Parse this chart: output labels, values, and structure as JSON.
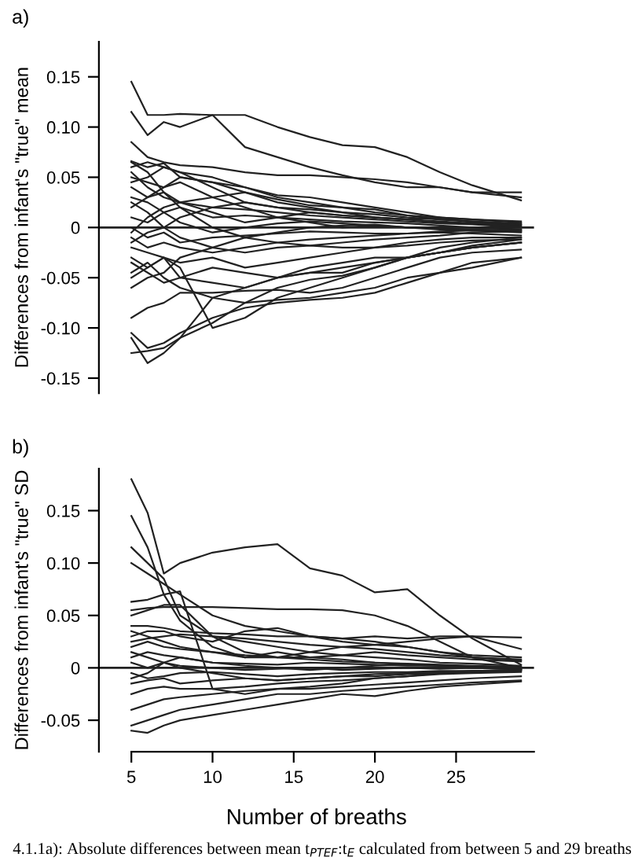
{
  "chart_data": [
    {
      "type": "line",
      "title": "a)",
      "ylabel": "Differences from infant's \"true\" mean",
      "tick_labels": "y",
      "grid": false,
      "legend": false,
      "x": [
        5,
        6,
        7,
        8,
        10,
        12,
        14,
        16,
        18,
        20,
        22,
        24,
        26,
        29
      ],
      "xlim": [
        3,
        29.8
      ],
      "ylim": [
        -0.165,
        0.185
      ],
      "yticks": [
        {
          "value": 0.15,
          "label": "0.15"
        },
        {
          "value": 0.1,
          "label": "0.10"
        },
        {
          "value": 0.05,
          "label": "0.05"
        },
        {
          "value": 0,
          "label": "0"
        },
        {
          "value": -0.05,
          "label": "-0.05"
        },
        {
          "value": -0.1,
          "label": "-0.10"
        },
        {
          "value": -0.15,
          "label": "-0.15"
        }
      ],
      "ref_lines": [
        {
          "axis": "y",
          "value": 0,
          "color": "#222222"
        }
      ],
      "series": [
        {
          "color": "#222222",
          "values": [
            0.145,
            0.112,
            0.112,
            0.113,
            0.112,
            0.112,
            0.1,
            0.09,
            0.082,
            0.08,
            0.07,
            0.055,
            0.042,
            0.027
          ]
        },
        {
          "color": "#222222",
          "values": [
            0.115,
            0.092,
            0.105,
            0.1,
            0.112,
            0.08,
            0.07,
            0.06,
            0.052,
            0.045,
            0.04,
            0.04,
            0.035,
            0.035
          ]
        },
        {
          "color": "#222222",
          "values": [
            0.085,
            0.07,
            0.065,
            0.062,
            0.06,
            0.055,
            0.052,
            0.052,
            0.05,
            0.048,
            0.045,
            0.04,
            0.035,
            0.03
          ]
        },
        {
          "color": "#222222",
          "values": [
            0.066,
            0.06,
            0.064,
            0.05,
            0.045,
            0.04,
            0.032,
            0.03,
            0.025,
            0.02,
            0.015,
            0.01,
            0.008,
            0.005
          ]
        },
        {
          "color": "#222222",
          "values": [
            0.065,
            0.055,
            0.035,
            0.02,
            0.0,
            -0.01,
            -0.005,
            0.0,
            0.002,
            0.003,
            0.0,
            0.0,
            0.0,
            -0.002
          ]
        },
        {
          "color": "#222222",
          "values": [
            0.06,
            0.065,
            0.06,
            0.055,
            0.05,
            0.04,
            0.03,
            0.025,
            0.02,
            0.015,
            0.012,
            0.01,
            0.005,
            0.002
          ]
        },
        {
          "color": "#222222",
          "values": [
            0.05,
            0.045,
            0.04,
            0.045,
            0.03,
            0.035,
            0.028,
            0.022,
            0.02,
            0.018,
            0.012,
            0.008,
            0.006,
            0.003
          ]
        },
        {
          "color": "#222222",
          "values": [
            0.04,
            0.03,
            0.035,
            0.025,
            0.02,
            0.018,
            0.015,
            0.012,
            0.01,
            0.008,
            0.006,
            0.004,
            0.003,
            0.0
          ]
        },
        {
          "color": "#222222",
          "values": [
            0.03,
            0.025,
            0.015,
            0.02,
            0.01,
            0.012,
            0.01,
            0.008,
            0.006,
            0.005,
            0.004,
            0.002,
            0.0,
            -0.002
          ]
        },
        {
          "color": "#222222",
          "values": [
            0.02,
            0.03,
            0.04,
            0.05,
            0.045,
            0.035,
            0.025,
            0.02,
            0.015,
            0.01,
            0.008,
            0.005,
            0.004,
            0.003
          ]
        },
        {
          "color": "#222222",
          "values": [
            0.01,
            0.005,
            0.015,
            0.005,
            -0.005,
            0.0,
            0.004,
            0.006,
            0.004,
            0.002,
            0.0,
            -0.002,
            -0.002,
            -0.004
          ]
        },
        {
          "color": "#222222",
          "values": [
            0.0,
            -0.01,
            -0.005,
            -0.015,
            -0.01,
            -0.008,
            -0.006,
            -0.004,
            -0.005,
            -0.006,
            -0.006,
            -0.004,
            -0.003,
            -0.005
          ]
        },
        {
          "color": "#222222",
          "values": [
            -0.01,
            -0.02,
            -0.015,
            -0.02,
            -0.025,
            -0.02,
            -0.015,
            -0.012,
            -0.01,
            -0.008,
            -0.006,
            -0.005,
            -0.006,
            -0.008
          ]
        },
        {
          "color": "#222222",
          "values": [
            -0.02,
            -0.025,
            -0.03,
            -0.035,
            -0.03,
            -0.04,
            -0.035,
            -0.03,
            -0.025,
            -0.02,
            -0.015,
            -0.012,
            -0.01,
            -0.01
          ]
        },
        {
          "color": "#222222",
          "values": [
            -0.03,
            -0.04,
            -0.03,
            -0.05,
            -0.04,
            -0.045,
            -0.05,
            -0.045,
            -0.045,
            -0.035,
            -0.03,
            -0.025,
            -0.02,
            -0.015
          ]
        },
        {
          "color": "#222222",
          "values": [
            -0.045,
            -0.035,
            -0.05,
            -0.06,
            -0.07,
            -0.075,
            -0.072,
            -0.07,
            -0.065,
            -0.06,
            -0.05,
            -0.045,
            -0.035,
            -0.03
          ]
        },
        {
          "color": "#222222",
          "values": [
            -0.06,
            -0.05,
            -0.045,
            -0.03,
            -0.02,
            -0.01,
            -0.015,
            -0.018,
            -0.02,
            -0.02,
            -0.018,
            -0.015,
            -0.013,
            -0.012
          ]
        },
        {
          "color": "#222222",
          "values": [
            -0.09,
            -0.08,
            -0.075,
            -0.065,
            -0.065,
            -0.063,
            -0.062,
            -0.065,
            -0.06,
            -0.05,
            -0.04,
            -0.03,
            -0.025,
            -0.022
          ]
        },
        {
          "color": "#222222",
          "values": [
            -0.105,
            -0.12,
            -0.115,
            -0.105,
            -0.09,
            -0.08,
            -0.075,
            -0.072,
            -0.07,
            -0.065,
            -0.055,
            -0.045,
            -0.04,
            -0.03
          ]
        },
        {
          "color": "#222222",
          "values": [
            -0.125,
            -0.123,
            -0.12,
            -0.11,
            -0.095,
            -0.075,
            -0.06,
            -0.052,
            -0.048,
            -0.04,
            -0.03,
            -0.025,
            -0.02,
            -0.015
          ]
        },
        {
          "color": "#222222",
          "values": [
            -0.11,
            -0.135,
            -0.125,
            -0.11,
            -0.07,
            -0.06,
            -0.05,
            -0.045,
            -0.04,
            -0.035,
            -0.03,
            -0.025,
            -0.02,
            -0.015
          ]
        },
        {
          "color": "#222222",
          "values": [
            -0.05,
            -0.04,
            -0.03,
            -0.04,
            -0.1,
            -0.09,
            -0.07,
            -0.06,
            -0.05,
            -0.04,
            -0.03,
            -0.02,
            -0.015,
            -0.01
          ]
        },
        {
          "color": "#222222",
          "values": [
            0.055,
            0.04,
            0.03,
            0.025,
            0.03,
            0.02,
            0.01,
            0.015,
            0.012,
            0.01,
            0.008,
            0.006,
            0.004,
            0.001
          ]
        },
        {
          "color": "#222222",
          "values": [
            0.045,
            0.05,
            0.06,
            0.055,
            0.04,
            0.025,
            0.02,
            0.018,
            0.015,
            0.013,
            0.01,
            0.008,
            0.006,
            0.004
          ]
        },
        {
          "color": "#222222",
          "values": [
            -0.005,
            0.01,
            0.02,
            0.025,
            0.015,
            0.005,
            0.01,
            0.005,
            0.0,
            0.002,
            0.0,
            -0.001,
            -0.002,
            -0.003
          ]
        },
        {
          "color": "#222222",
          "values": [
            0.025,
            0.015,
            0.0,
            -0.01,
            -0.02,
            -0.025,
            -0.02,
            -0.018,
            -0.015,
            -0.012,
            -0.01,
            -0.008,
            -0.005,
            -0.004
          ]
        },
        {
          "color": "#222222",
          "values": [
            -0.015,
            -0.005,
            0.0,
            0.01,
            0.02,
            0.025,
            0.02,
            0.015,
            0.012,
            0.01,
            0.008,
            0.01,
            0.008,
            0.006
          ]
        },
        {
          "color": "#222222",
          "values": [
            -0.035,
            -0.045,
            -0.055,
            -0.05,
            -0.055,
            -0.06,
            -0.05,
            -0.04,
            -0.035,
            -0.03,
            -0.03,
            -0.025,
            -0.018,
            -0.012
          ]
        }
      ]
    },
    {
      "type": "line",
      "title": "b)",
      "ylabel": "Differences from infant's \"true\" SD",
      "xlabel": "Number of breaths",
      "grid": false,
      "legend": false,
      "x": [
        5,
        6,
        7,
        8,
        10,
        12,
        14,
        16,
        18,
        20,
        22,
        24,
        26,
        29
      ],
      "xlim": [
        3,
        29.8
      ],
      "ylim": [
        -0.08,
        0.19
      ],
      "xticks": [
        5,
        10,
        15,
        20,
        25
      ],
      "yticks": [
        {
          "value": 0.15,
          "label": "0.15"
        },
        {
          "value": 0.1,
          "label": "0.10"
        },
        {
          "value": 0.05,
          "label": "0.05"
        },
        {
          "value": 0,
          "label": "0"
        },
        {
          "value": -0.05,
          "label": "-0.05"
        }
      ],
      "ref_lines": [
        {
          "axis": "y",
          "value": 0,
          "color": "#222222"
        }
      ],
      "annotations": [
        "4.1.1a): Absolute differences between mean t$_{PTEF}$:t$_{E}$ calculated from between 5 and 29 breaths"
      ],
      "series": [
        {
          "color": "#222222",
          "values": [
            0.18,
            0.148,
            0.09,
            0.1,
            0.11,
            0.115,
            0.118,
            0.095,
            0.088,
            0.072,
            0.075,
            0.05,
            0.028,
            0.003
          ]
        },
        {
          "color": "#222222",
          "values": [
            0.145,
            0.115,
            0.07,
            0.045,
            0.02,
            0.01,
            0.015,
            0.01,
            0.008,
            0.005,
            0.003,
            0.002,
            0.001,
            0.0
          ]
        },
        {
          "color": "#222222",
          "values": [
            0.115,
            0.1,
            0.085,
            0.05,
            0.03,
            0.025,
            0.02,
            0.015,
            0.012,
            0.01,
            0.008,
            0.005,
            0.004,
            0.002
          ]
        },
        {
          "color": "#222222",
          "values": [
            0.1,
            0.09,
            0.08,
            0.07,
            0.05,
            0.04,
            0.035,
            0.03,
            0.025,
            0.022,
            0.02,
            0.015,
            0.012,
            0.01
          ]
        },
        {
          "color": "#222222",
          "values": [
            0.063,
            0.065,
            0.07,
            0.073,
            -0.02,
            -0.025,
            -0.02,
            -0.018,
            -0.015,
            -0.01,
            -0.008,
            -0.005,
            -0.003,
            -0.002
          ]
        },
        {
          "color": "#222222",
          "values": [
            0.055,
            0.057,
            0.058,
            0.058,
            0.058,
            0.057,
            0.056,
            0.056,
            0.055,
            0.05,
            0.04,
            0.025,
            0.01,
            0.0
          ]
        },
        {
          "color": "#222222",
          "values": [
            0.05,
            0.055,
            0.06,
            0.06,
            0.03,
            0.015,
            0.01,
            0.008,
            0.006,
            0.005,
            0.004,
            0.003,
            0.002,
            0.001
          ]
        },
        {
          "color": "#222222",
          "values": [
            0.04,
            0.04,
            0.038,
            0.035,
            0.033,
            0.032,
            0.03,
            0.03,
            0.028,
            0.03,
            0.028,
            0.03,
            0.03,
            0.029
          ]
        },
        {
          "color": "#222222",
          "values": [
            0.03,
            0.035,
            0.035,
            0.03,
            0.025,
            0.035,
            0.038,
            0.03,
            0.028,
            0.025,
            0.02,
            0.015,
            0.01,
            0.008
          ]
        },
        {
          "color": "#222222",
          "values": [
            0.02,
            0.025,
            0.02,
            0.018,
            0.015,
            0.012,
            0.01,
            0.01,
            0.012,
            0.015,
            0.012,
            0.01,
            0.008,
            0.006
          ]
        },
        {
          "color": "#222222",
          "values": [
            0.01,
            0.015,
            0.012,
            0.01,
            0.005,
            0.004,
            0.003,
            0.005,
            0.004,
            0.003,
            0.002,
            0.002,
            0.001,
            0.0
          ]
        },
        {
          "color": "#222222",
          "values": [
            0.005,
            0.0,
            0.005,
            0.002,
            0.0,
            -0.002,
            -0.001,
            0.0,
            -0.002,
            -0.001,
            0.0,
            -0.001,
            0.0,
            -0.001
          ]
        },
        {
          "color": "#222222",
          "values": [
            -0.005,
            -0.01,
            -0.008,
            -0.005,
            -0.004,
            -0.006,
            -0.008,
            -0.006,
            -0.005,
            -0.004,
            -0.004,
            -0.003,
            -0.003,
            -0.002
          ]
        },
        {
          "color": "#222222",
          "values": [
            -0.015,
            -0.012,
            -0.01,
            -0.015,
            -0.012,
            -0.01,
            -0.012,
            -0.01,
            -0.008,
            -0.008,
            -0.006,
            -0.005,
            -0.004,
            -0.003
          ]
        },
        {
          "color": "#222222",
          "values": [
            -0.025,
            -0.02,
            -0.018,
            -0.02,
            -0.02,
            -0.018,
            -0.015,
            -0.013,
            -0.012,
            -0.01,
            -0.008,
            -0.006,
            -0.005,
            -0.004
          ]
        },
        {
          "color": "#222222",
          "values": [
            -0.04,
            -0.035,
            -0.03,
            -0.028,
            -0.025,
            -0.022,
            -0.02,
            -0.02,
            -0.018,
            -0.016,
            -0.014,
            -0.012,
            -0.01,
            -0.008
          ]
        },
        {
          "color": "#222222",
          "values": [
            -0.055,
            -0.05,
            -0.045,
            -0.04,
            -0.035,
            -0.03,
            -0.025,
            -0.025,
            -0.022,
            -0.02,
            -0.018,
            -0.016,
            -0.014,
            -0.012
          ]
        },
        {
          "color": "#222222",
          "values": [
            -0.06,
            -0.062,
            -0.055,
            -0.05,
            -0.045,
            -0.04,
            -0.035,
            -0.03,
            -0.025,
            -0.027,
            -0.022,
            -0.018,
            -0.016,
            -0.013
          ]
        },
        {
          "color": "#222222",
          "values": [
            0.035,
            0.03,
            0.025,
            0.02,
            0.015,
            0.01,
            0.01,
            0.015,
            0.02,
            0.022,
            0.025,
            0.028,
            0.03,
            0.018
          ]
        },
        {
          "color": "#222222",
          "values": [
            0.025,
            0.028,
            0.03,
            0.032,
            0.03,
            0.028,
            0.025,
            0.022,
            0.02,
            0.018,
            0.015,
            0.012,
            0.01,
            0.007
          ]
        },
        {
          "color": "#222222",
          "values": [
            0.015,
            0.01,
            0.005,
            0.0,
            -0.005,
            -0.01,
            -0.012,
            -0.01,
            -0.008,
            -0.006,
            -0.005,
            -0.004,
            -0.003,
            -0.002
          ]
        },
        {
          "color": "#222222",
          "values": [
            -0.01,
            -0.005,
            0.005,
            0.01,
            0.005,
            0.002,
            0.0,
            -0.002,
            0.0,
            0.002,
            0.003,
            0.002,
            0.0,
            -0.001
          ]
        }
      ]
    }
  ]
}
